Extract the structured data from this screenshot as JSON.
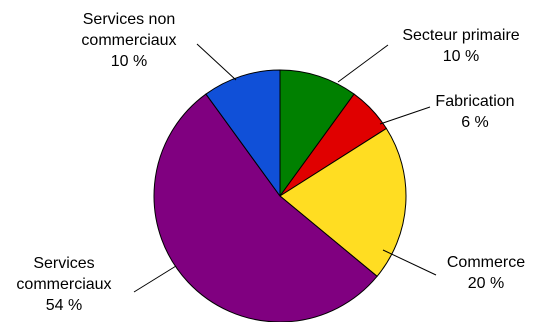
{
  "chart_data": {
    "type": "pie",
    "title": "",
    "categories": [
      "Secteur primaire",
      "Fabrication",
      "Commerce",
      "Services commerciaux",
      "Services non commerciaux"
    ],
    "values": [
      10,
      6,
      20,
      54,
      10
    ],
    "value_labels": [
      "10 %",
      "6 %",
      "20 %",
      "54 %",
      "10 %"
    ],
    "slice_labels": [
      [
        "Secteur primaire"
      ],
      [
        "Fabrication"
      ],
      [
        "Commerce"
      ],
      [
        "Services",
        "commerciaux"
      ],
      [
        "Services non",
        "commerciaux"
      ]
    ],
    "colors": [
      "#008000",
      "#e00000",
      "#ffdd22",
      "#800080",
      "#1050d8"
    ],
    "start": "top, clockwise",
    "legend": "none (callout labels)"
  }
}
